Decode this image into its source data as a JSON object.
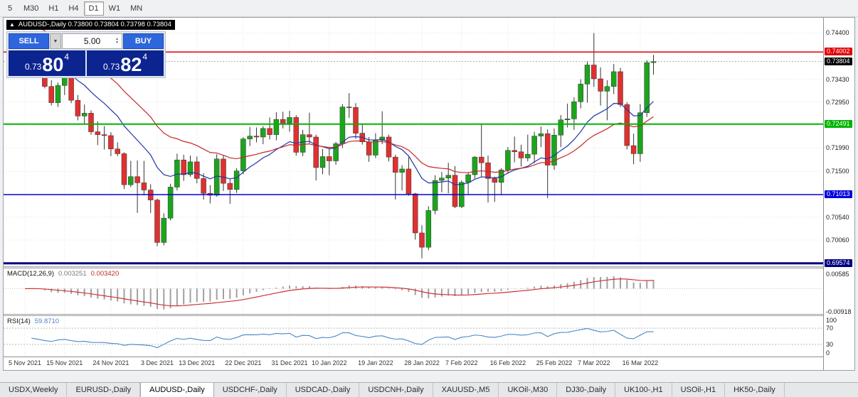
{
  "icons": {
    "collapse": "▲",
    "dropdown": "▼",
    "spin_up": "▲",
    "spin_down": "▼"
  },
  "toolbar": {
    "timeframes": [
      {
        "label": "5",
        "active": false
      },
      {
        "label": "M30",
        "active": false
      },
      {
        "label": "H1",
        "active": false
      },
      {
        "label": "H4",
        "active": false
      },
      {
        "label": "D1",
        "active": true
      },
      {
        "label": "W1",
        "active": false
      },
      {
        "label": "MN",
        "active": false
      }
    ]
  },
  "chart": {
    "title": "AUDUSD-,Daily 0.73800 0.73804 0.73798 0.73804"
  },
  "trade_panel": {
    "sell_label": "SELL",
    "buy_label": "BUY",
    "volume": "5.00",
    "sell_price": {
      "prefix": "0.73",
      "big": "80",
      "sup": "4"
    },
    "buy_price": {
      "prefix": "0.73",
      "big": "82",
      "sup": "4"
    }
  },
  "tab_bar": {
    "tabs": [
      "USDX,Weekly",
      "EURUSD-,Daily",
      "AUDUSD-,Daily",
      "USDCHF-,Daily",
      "USDCAD-,Daily",
      "USDCNH-,Daily",
      "XAUUSD-,M5",
      "UKOil-,M30",
      "DJ30-,Daily",
      "UK100-,H1",
      "USOil-,H1",
      "HK50-,Daily"
    ],
    "active_index": 2
  },
  "chart_data": {
    "type": "candlestick",
    "symbol": "AUDUSD-",
    "timeframe": "Daily",
    "ohlc_display": {
      "open": "0.73800",
      "high": "0.73804",
      "low": "0.73798",
      "close": "0.73804"
    },
    "ylim": [
      0.6951,
      0.7472
    ],
    "colors": {
      "up": "#1ca51c",
      "down": "#e03030",
      "wick": "#333333",
      "grid": "#e4e4e4",
      "ma_fast": "#1f35a8",
      "ma_slow": "#c62828",
      "macd_hist": "#a0a0a0",
      "macd_signal": "#cc3333",
      "rsi": "#4a86c8"
    },
    "price_gridlines": [
      {
        "value": 0.744,
        "label": "0.74400"
      },
      {
        "value": 0.7343,
        "label": "0.73430"
      },
      {
        "value": 0.7295,
        "label": "0.72950"
      },
      {
        "value": 0.7199,
        "label": "0.71990"
      },
      {
        "value": 0.715,
        "label": "0.71500"
      },
      {
        "value": 0.7054,
        "label": "0.70540"
      },
      {
        "value": 0.7006,
        "label": "0.70060"
      }
    ],
    "hlines": [
      {
        "value": 0.74002,
        "label": "0.74002",
        "color": "#e00000",
        "width": 1.5
      },
      {
        "value": 0.72491,
        "label": "0.72491",
        "color": "#00b400",
        "width": 2
      },
      {
        "value": 0.71013,
        "label": "0.71013",
        "color": "#0000dd",
        "width": 1.5
      },
      {
        "value": 0.69574,
        "label": "0.69574",
        "color": "#000080",
        "width": 3
      }
    ],
    "current_price": {
      "value": 0.73804,
      "label": "0.73804",
      "badge_color": "#000000"
    },
    "x_tick_indices": [
      0,
      6,
      13,
      20,
      26,
      33,
      40,
      46,
      53,
      60,
      66,
      73,
      80,
      86,
      93
    ],
    "x_tick_labels": [
      "5 Nov 2021",
      "15 Nov 2021",
      "24 Nov 2021",
      "3 Dec 2021",
      "13 Dec 2021",
      "22 Dec 2021",
      "31 Dec 2021",
      "10 Jan 2022",
      "19 Jan 2022",
      "28 Jan 2022",
      "7 Feb 2022",
      "16 Feb 2022",
      "25 Feb 2022",
      "7 Mar 2022",
      "16 Mar 2022"
    ],
    "ma_lines": [
      {
        "name": "ema-fast",
        "period": 13,
        "seed": 0.7388,
        "color": "#1f35a8"
      },
      {
        "name": "ema-slow",
        "period": 26,
        "seed": 0.7468,
        "color": "#c62828"
      }
    ],
    "candles": [
      [
        0.7399,
        0.7409,
        0.7361,
        0.7402
      ],
      [
        0.7402,
        0.7428,
        0.7388,
        0.7417
      ],
      [
        0.7417,
        0.7432,
        0.737,
        0.7379
      ],
      [
        0.7379,
        0.7395,
        0.7324,
        0.7328
      ],
      [
        0.7328,
        0.7341,
        0.7288,
        0.7294
      ],
      [
        0.7294,
        0.7336,
        0.7285,
        0.733
      ],
      [
        0.733,
        0.7351,
        0.731,
        0.7346
      ],
      [
        0.7346,
        0.737,
        0.7293,
        0.7299
      ],
      [
        0.7299,
        0.731,
        0.7257,
        0.7266
      ],
      [
        0.7266,
        0.729,
        0.725,
        0.7272
      ],
      [
        0.7272,
        0.7278,
        0.7227,
        0.7233
      ],
      [
        0.7233,
        0.7255,
        0.7205,
        0.7227
      ],
      [
        0.7227,
        0.7245,
        0.7196,
        0.7225
      ],
      [
        0.7225,
        0.7232,
        0.7182,
        0.7197
      ],
      [
        0.7197,
        0.7211,
        0.7182,
        0.7187
      ],
      [
        0.7187,
        0.719,
        0.7113,
        0.7122
      ],
      [
        0.7122,
        0.7172,
        0.7117,
        0.7139
      ],
      [
        0.7139,
        0.7173,
        0.7063,
        0.7126
      ],
      [
        0.7126,
        0.7172,
        0.71,
        0.7111
      ],
      [
        0.7111,
        0.7123,
        0.7063,
        0.709
      ],
      [
        0.709,
        0.7093,
        0.6993,
        0.7001
      ],
      [
        0.7001,
        0.7062,
        0.6995,
        0.7052
      ],
      [
        0.7052,
        0.7124,
        0.7047,
        0.7117
      ],
      [
        0.7117,
        0.7187,
        0.711,
        0.7174
      ],
      [
        0.7174,
        0.7185,
        0.713,
        0.7143
      ],
      [
        0.7143,
        0.7183,
        0.7139,
        0.717
      ],
      [
        0.717,
        0.7181,
        0.7125,
        0.7135
      ],
      [
        0.7135,
        0.7146,
        0.7091,
        0.7104
      ],
      [
        0.7104,
        0.7121,
        0.7083,
        0.71
      ],
      [
        0.71,
        0.7186,
        0.7097,
        0.7176
      ],
      [
        0.7176,
        0.7184,
        0.7109,
        0.7125
      ],
      [
        0.7125,
        0.7133,
        0.7082,
        0.7112
      ],
      [
        0.7112,
        0.7157,
        0.7105,
        0.7151
      ],
      [
        0.7151,
        0.7222,
        0.7144,
        0.7218
      ],
      [
        0.7218,
        0.7243,
        0.7203,
        0.7224
      ],
      [
        0.7224,
        0.7242,
        0.7211,
        0.7222
      ],
      [
        0.7222,
        0.7245,
        0.7207,
        0.724
      ],
      [
        0.724,
        0.7263,
        0.7217,
        0.7227
      ],
      [
        0.7227,
        0.7274,
        0.7215,
        0.7259
      ],
      [
        0.7259,
        0.7275,
        0.724,
        0.7251
      ],
      [
        0.7251,
        0.7277,
        0.7233,
        0.7263
      ],
      [
        0.7263,
        0.7268,
        0.7183,
        0.719
      ],
      [
        0.719,
        0.7237,
        0.7182,
        0.7227
      ],
      [
        0.7227,
        0.7273,
        0.7209,
        0.7222
      ],
      [
        0.7222,
        0.7227,
        0.7131,
        0.7158
      ],
      [
        0.7158,
        0.7197,
        0.7144,
        0.7181
      ],
      [
        0.7181,
        0.7198,
        0.7142,
        0.7172
      ],
      [
        0.7172,
        0.7212,
        0.7164,
        0.7208
      ],
      [
        0.7208,
        0.7291,
        0.7199,
        0.7285
      ],
      [
        0.7285,
        0.7314,
        0.7262,
        0.7284
      ],
      [
        0.7284,
        0.7293,
        0.7218,
        0.723
      ],
      [
        0.723,
        0.725,
        0.7206,
        0.7212
      ],
      [
        0.7212,
        0.7222,
        0.717,
        0.7184
      ],
      [
        0.7184,
        0.723,
        0.7178,
        0.7215
      ],
      [
        0.7215,
        0.7276,
        0.7207,
        0.7222
      ],
      [
        0.7222,
        0.7227,
        0.7171,
        0.718
      ],
      [
        0.718,
        0.7185,
        0.7091,
        0.7148
      ],
      [
        0.7148,
        0.7163,
        0.711,
        0.7155
      ],
      [
        0.7155,
        0.718,
        0.7099,
        0.7103
      ],
      [
        0.7103,
        0.7105,
        0.7007,
        0.7021
      ],
      [
        0.7021,
        0.7037,
        0.6968,
        0.6991
      ],
      [
        0.6991,
        0.7077,
        0.6985,
        0.7068
      ],
      [
        0.7068,
        0.7142,
        0.706,
        0.7131
      ],
      [
        0.7131,
        0.7149,
        0.7106,
        0.7136
      ],
      [
        0.7136,
        0.7168,
        0.7104,
        0.7142
      ],
      [
        0.7142,
        0.7161,
        0.7073,
        0.7076
      ],
      [
        0.7076,
        0.7131,
        0.7073,
        0.7127
      ],
      [
        0.7127,
        0.7148,
        0.7101,
        0.7143
      ],
      [
        0.7143,
        0.7182,
        0.7135,
        0.718
      ],
      [
        0.718,
        0.7249,
        0.7139,
        0.7168
      ],
      [
        0.7168,
        0.7183,
        0.7085,
        0.7135
      ],
      [
        0.7135,
        0.7139,
        0.7086,
        0.7127
      ],
      [
        0.7127,
        0.7157,
        0.71,
        0.7153
      ],
      [
        0.7153,
        0.7201,
        0.7145,
        0.7194
      ],
      [
        0.7194,
        0.7223,
        0.7169,
        0.7191
      ],
      [
        0.7191,
        0.7206,
        0.716,
        0.7178
      ],
      [
        0.7178,
        0.7227,
        0.7171,
        0.7186
      ],
      [
        0.7186,
        0.7233,
        0.7167,
        0.7224
      ],
      [
        0.7224,
        0.7244,
        0.7201,
        0.7229
      ],
      [
        0.7229,
        0.7238,
        0.7094,
        0.7163
      ],
      [
        0.7163,
        0.724,
        0.7153,
        0.7226
      ],
      [
        0.7226,
        0.7268,
        0.7201,
        0.7258
      ],
      [
        0.7258,
        0.7292,
        0.7242,
        0.726
      ],
      [
        0.726,
        0.7305,
        0.7237,
        0.7296
      ],
      [
        0.7296,
        0.7343,
        0.7282,
        0.7333
      ],
      [
        0.7333,
        0.738,
        0.7294,
        0.7373
      ],
      [
        0.7373,
        0.744,
        0.7327,
        0.7344
      ],
      [
        0.7344,
        0.7368,
        0.7288,
        0.7318
      ],
      [
        0.7318,
        0.7341,
        0.7257,
        0.7328
      ],
      [
        0.7328,
        0.7375,
        0.7312,
        0.7359
      ],
      [
        0.7359,
        0.7367,
        0.7285,
        0.729
      ],
      [
        0.729,
        0.7295,
        0.7196,
        0.7204
      ],
      [
        0.7204,
        0.7229,
        0.7165,
        0.7187
      ],
      [
        0.7187,
        0.7291,
        0.717,
        0.7273
      ],
      [
        0.7273,
        0.7383,
        0.7264,
        0.7378
      ],
      [
        0.7378,
        0.7394,
        0.7353,
        0.738
      ]
    ],
    "macd": {
      "label": "MACD(12,26,9)",
      "value_main": "0.003251",
      "value_signal": "0.003420",
      "fast": 12,
      "slow": 26,
      "signal": 9,
      "ylim": [
        -0.01,
        0.008
      ],
      "axis_labels": [
        {
          "value": 0.00585,
          "label": "0.00585"
        },
        {
          "value": -0.00918,
          "label": "-0.00918"
        }
      ]
    },
    "rsi": {
      "label": "RSI(14)",
      "value": "59.8710",
      "period": 14,
      "levels": [
        70,
        30
      ],
      "ylim": [
        0,
        100
      ],
      "axis_labels": [
        {
          "value": 100,
          "label": "100"
        },
        {
          "value": 70,
          "label": "70"
        },
        {
          "value": 30,
          "label": "30"
        },
        {
          "value": 0,
          "label": "0"
        }
      ]
    }
  }
}
